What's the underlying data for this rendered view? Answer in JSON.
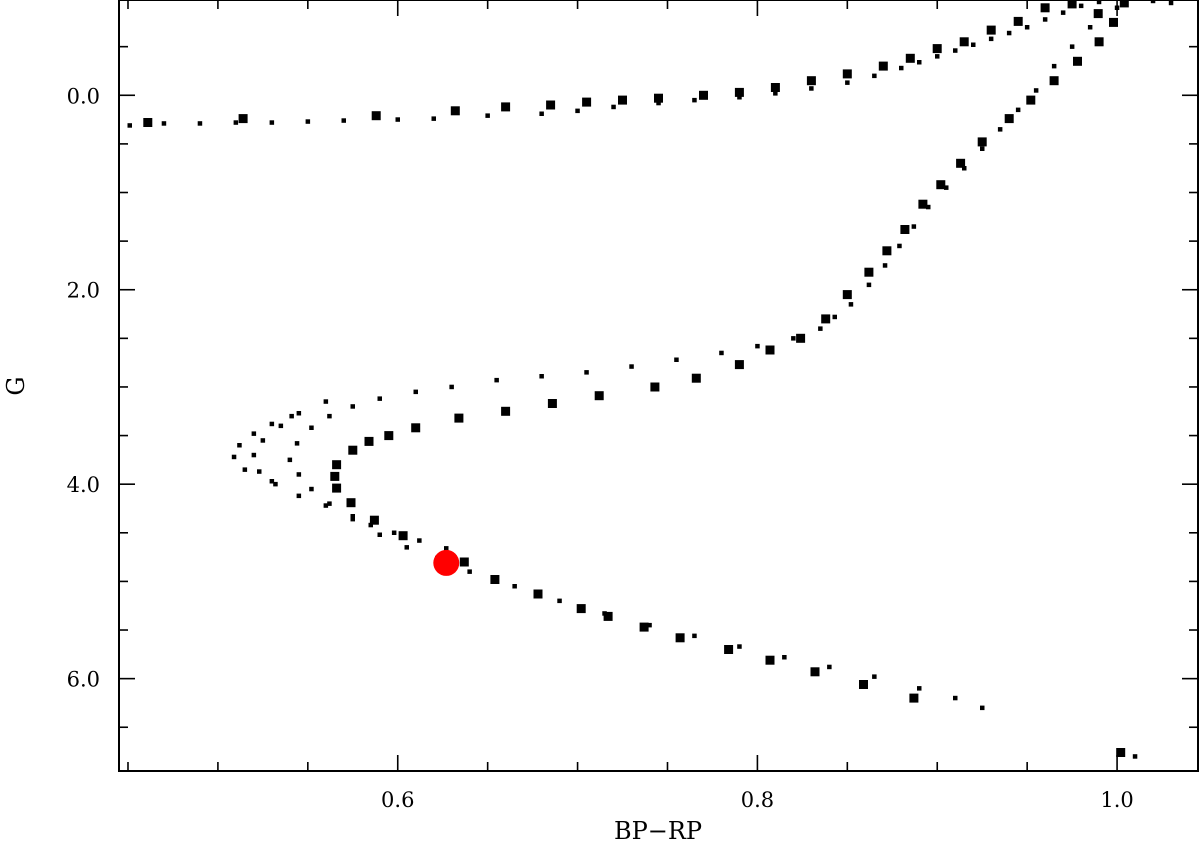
{
  "chart_data": {
    "type": "scatter",
    "xlabel": "BP−RP",
    "ylabel": "G",
    "xlim": [
      0.445,
      1.045
    ],
    "ylim": [
      6.95,
      -0.98
    ],
    "x_major_ticks": [
      0.6,
      0.8,
      1.0
    ],
    "x_major_tick_labels": [
      "0.6",
      "0.8",
      "1.0"
    ],
    "x_minor_step": 0.05,
    "y_major_ticks": [
      0.0,
      2.0,
      4.0,
      6.0
    ],
    "y_major_tick_labels": [
      "0.0",
      "2.0",
      "4.0",
      "6.0"
    ],
    "y_minor_step": 0.5,
    "grid": false,
    "marker_color": "#000000",
    "highlight_color": "#ff0000",
    "series": [
      {
        "marker": "square-large",
        "points": [
          [
            0.9895,
            -0.84
          ],
          [
            0.975,
            -0.94
          ],
          [
            0.96,
            -0.9
          ],
          [
            0.945,
            -0.76
          ],
          [
            0.93,
            -0.67
          ],
          [
            0.915,
            -0.55
          ],
          [
            0.9,
            -0.48
          ],
          [
            0.885,
            -0.38
          ],
          [
            0.87,
            -0.3
          ],
          [
            0.85,
            -0.22
          ],
          [
            0.83,
            -0.15
          ],
          [
            0.81,
            -0.08
          ],
          [
            0.79,
            -0.03
          ],
          [
            0.77,
            0.0
          ],
          [
            0.745,
            0.03
          ],
          [
            0.725,
            0.05
          ],
          [
            0.705,
            0.07
          ],
          [
            0.685,
            0.1
          ],
          [
            0.66,
            0.12
          ],
          [
            0.632,
            0.16
          ],
          [
            0.588,
            0.21
          ],
          [
            0.514,
            0.24
          ],
          [
            0.461,
            0.28
          ],
          [
            1.004,
            -0.95
          ],
          [
            0.998,
            -0.75
          ],
          [
            0.99,
            -0.55
          ],
          [
            0.978,
            -0.35
          ],
          [
            0.965,
            -0.15
          ],
          [
            0.952,
            0.05
          ],
          [
            0.94,
            0.24
          ],
          [
            0.925,
            0.48
          ],
          [
            0.913,
            0.7
          ],
          [
            0.902,
            0.92
          ],
          [
            0.892,
            1.12
          ],
          [
            0.882,
            1.38
          ],
          [
            0.872,
            1.6
          ],
          [
            0.862,
            1.82
          ],
          [
            0.85,
            2.05
          ],
          [
            0.838,
            2.3
          ],
          [
            0.824,
            2.5
          ],
          [
            0.807,
            2.62
          ],
          [
            0.79,
            2.77
          ],
          [
            0.766,
            2.91
          ],
          [
            0.743,
            3.0
          ],
          [
            0.712,
            3.09
          ],
          [
            0.686,
            3.17
          ],
          [
            0.66,
            3.25
          ],
          [
            0.634,
            3.32
          ],
          [
            0.61,
            3.42
          ],
          [
            0.595,
            3.5
          ],
          [
            0.584,
            3.56
          ],
          [
            0.575,
            3.65
          ],
          [
            0.566,
            3.8
          ],
          [
            0.565,
            3.92
          ],
          [
            0.566,
            4.04
          ],
          [
            0.574,
            4.19
          ],
          [
            0.587,
            4.37
          ],
          [
            0.603,
            4.53
          ],
          [
            0.637,
            4.8
          ],
          [
            0.654,
            4.98
          ],
          [
            0.678,
            5.13
          ],
          [
            0.702,
            5.28
          ],
          [
            0.717,
            5.36
          ],
          [
            0.737,
            5.47
          ],
          [
            0.757,
            5.58
          ],
          [
            0.784,
            5.7
          ],
          [
            0.807,
            5.81
          ],
          [
            0.832,
            5.93
          ],
          [
            0.859,
            6.06
          ],
          [
            0.887,
            6.2
          ],
          [
            1.002,
            6.76
          ]
        ]
      },
      {
        "marker": "square-small",
        "points": [
          [
            0.451,
            0.31
          ],
          [
            0.47,
            0.29
          ],
          [
            0.49,
            0.29
          ],
          [
            0.51,
            0.28
          ],
          [
            0.53,
            0.28
          ],
          [
            0.55,
            0.27
          ],
          [
            0.57,
            0.26
          ],
          [
            0.6,
            0.25
          ],
          [
            0.62,
            0.24
          ],
          [
            0.65,
            0.21
          ],
          [
            0.68,
            0.19
          ],
          [
            0.7,
            0.16
          ],
          [
            0.72,
            0.12
          ],
          [
            0.745,
            0.08
          ],
          [
            0.765,
            0.05
          ],
          [
            0.79,
            0.02
          ],
          [
            0.81,
            -0.02
          ],
          [
            0.83,
            -0.07
          ],
          [
            0.85,
            -0.13
          ],
          [
            0.865,
            -0.2
          ],
          [
            0.88,
            -0.28
          ],
          [
            0.89,
            -0.34
          ],
          [
            0.9,
            -0.4
          ],
          [
            0.91,
            -0.46
          ],
          [
            0.92,
            -0.52
          ],
          [
            0.93,
            -0.58
          ],
          [
            0.94,
            -0.64
          ],
          [
            0.95,
            -0.7
          ],
          [
            0.96,
            -0.78
          ],
          [
            0.97,
            -0.85
          ],
          [
            0.98,
            -0.92
          ],
          [
            0.99,
            -0.96
          ],
          [
            1.005,
            -0.98
          ],
          [
            1.02,
            -0.97
          ],
          [
            1.03,
            -0.95
          ],
          [
            1.0,
            -0.9
          ],
          [
            0.985,
            -0.7
          ],
          [
            0.975,
            -0.5
          ],
          [
            0.965,
            -0.3
          ],
          [
            0.955,
            -0.05
          ],
          [
            0.945,
            0.15
          ],
          [
            0.935,
            0.35
          ],
          [
            0.925,
            0.55
          ],
          [
            0.915,
            0.75
          ],
          [
            0.905,
            0.95
          ],
          [
            0.895,
            1.15
          ],
          [
            0.887,
            1.35
          ],
          [
            0.879,
            1.55
          ],
          [
            0.871,
            1.75
          ],
          [
            0.862,
            1.95
          ],
          [
            0.852,
            2.15
          ],
          [
            0.843,
            2.28
          ],
          [
            0.835,
            2.4
          ],
          [
            0.82,
            2.5
          ],
          [
            0.8,
            2.58
          ],
          [
            0.78,
            2.65
          ],
          [
            0.755,
            2.72
          ],
          [
            0.73,
            2.79
          ],
          [
            0.705,
            2.85
          ],
          [
            0.68,
            2.89
          ],
          [
            0.655,
            2.93
          ],
          [
            0.63,
            3.0
          ],
          [
            0.61,
            3.05
          ],
          [
            0.59,
            3.12
          ],
          [
            0.575,
            3.2
          ],
          [
            0.562,
            3.3
          ],
          [
            0.552,
            3.42
          ],
          [
            0.544,
            3.58
          ],
          [
            0.54,
            3.75
          ],
          [
            0.545,
            3.9
          ],
          [
            0.552,
            4.05
          ],
          [
            0.562,
            4.2
          ],
          [
            0.575,
            4.36
          ],
          [
            0.59,
            4.52
          ],
          [
            0.605,
            4.65
          ],
          [
            0.622,
            4.76
          ],
          [
            0.64,
            4.9
          ],
          [
            0.665,
            5.05
          ],
          [
            0.69,
            5.2
          ],
          [
            0.715,
            5.33
          ],
          [
            0.74,
            5.45
          ],
          [
            0.765,
            5.56
          ],
          [
            0.79,
            5.67
          ],
          [
            0.815,
            5.78
          ],
          [
            0.84,
            5.88
          ],
          [
            0.865,
            5.98
          ],
          [
            0.89,
            6.1
          ],
          [
            0.91,
            6.2
          ],
          [
            0.925,
            6.3
          ],
          [
            0.56,
            3.15
          ],
          [
            0.545,
            3.27
          ],
          [
            0.535,
            3.4
          ],
          [
            0.525,
            3.55
          ],
          [
            0.52,
            3.7
          ],
          [
            0.523,
            3.87
          ],
          [
            0.532,
            4.0
          ],
          [
            0.545,
            4.12
          ],
          [
            0.56,
            4.22
          ],
          [
            0.575,
            4.33
          ],
          [
            0.585,
            4.42
          ],
          [
            0.598,
            4.5
          ],
          [
            0.612,
            4.58
          ],
          [
            0.627,
            4.66
          ],
          [
            0.541,
            3.3
          ],
          [
            0.53,
            3.38
          ],
          [
            0.52,
            3.48
          ],
          [
            0.512,
            3.6
          ],
          [
            0.509,
            3.72
          ],
          [
            0.515,
            3.85
          ],
          [
            0.53,
            3.97
          ],
          [
            1.01,
            6.8
          ]
        ]
      }
    ],
    "highlight_point": [
      0.627,
      4.81
    ]
  }
}
